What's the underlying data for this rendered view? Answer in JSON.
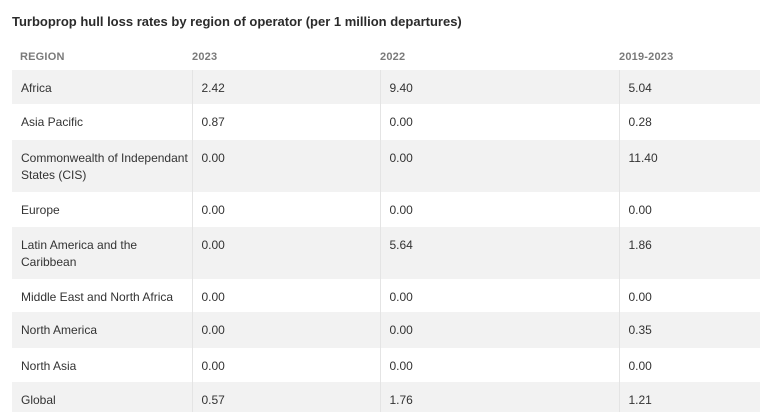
{
  "title": "Turboprop hull loss rates by region of operator (per 1 million departures)",
  "table": {
    "headers": {
      "region": "REGION",
      "y2023": "2023",
      "y2022": "2022",
      "period": "2019-2023"
    },
    "rows": [
      {
        "region": "Africa",
        "y2023": "2.42",
        "y2022": "9.40",
        "period": "5.04"
      },
      {
        "region": "Asia Pacific",
        "y2023": "0.87",
        "y2022": "0.00",
        "period": "0.28"
      },
      {
        "region": "Commonwealth of Independant States (CIS)",
        "y2023": "0.00",
        "y2022": "0.00",
        "period": "11.40"
      },
      {
        "region": "Europe",
        "y2023": "0.00",
        "y2022": "0.00",
        "period": "0.00"
      },
      {
        "region": "Latin America and the Caribbean",
        "y2023": "0.00",
        "y2022": "5.64",
        "period": "1.86"
      },
      {
        "region": "Middle East and North Africa",
        "y2023": "0.00",
        "y2022": "0.00",
        "period": "0.00"
      },
      {
        "region": "North America",
        "y2023": "0.00",
        "y2022": "0.00",
        "period": "0.35"
      },
      {
        "region": "North Asia",
        "y2023": "0.00",
        "y2022": "0.00",
        "period": "0.00"
      },
      {
        "region": "Global",
        "y2023": "0.57",
        "y2022": "1.76",
        "period": "1.21"
      }
    ]
  },
  "colors": {
    "header_row_bg": "#f2f2f2",
    "text": "#333333",
    "header_text": "#7a7a7a"
  }
}
